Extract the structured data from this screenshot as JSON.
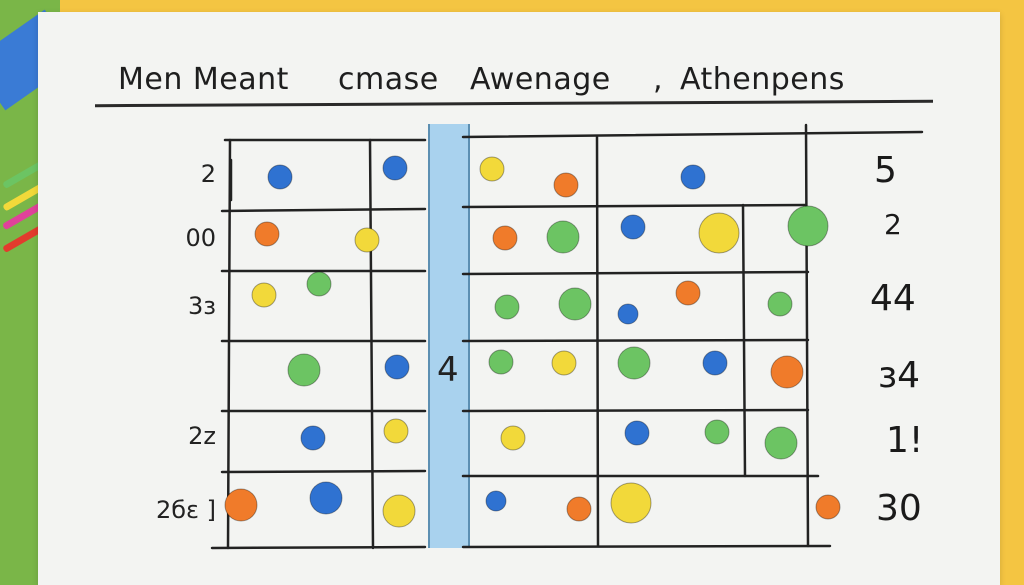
{
  "title": {
    "part1": "Men Meant",
    "part2": "cmase",
    "part3": "Awenage",
    "separator": ",",
    "part4": "Athenpens"
  },
  "left_labels": [
    "2",
    "00",
    "3з",
    "2z",
    "2бɛ ]"
  ],
  "right_labels": [
    "5",
    "2",
    "44",
    "з4",
    "1!",
    "30"
  ],
  "middle_label": "4",
  "colors": {
    "blue": "#2f72d1",
    "orange": "#f07b2a",
    "yellow": "#f2d93a",
    "green": "#6cc463",
    "strip": "#a9d2ee"
  },
  "dots": [
    {
      "color": "blue",
      "size": "md"
    },
    {
      "color": "blue",
      "size": "md"
    },
    {
      "color": "yellow",
      "size": "md"
    },
    {
      "color": "orange",
      "size": "md"
    },
    {
      "color": "blue",
      "size": "md"
    },
    {
      "color": "orange",
      "size": "md"
    },
    {
      "color": "yellow",
      "size": "md"
    },
    {
      "color": "orange",
      "size": "md"
    },
    {
      "color": "green",
      "size": "lg"
    },
    {
      "color": "blue",
      "size": "md"
    },
    {
      "color": "yellow",
      "size": "xl"
    },
    {
      "color": "green",
      "size": "xl"
    },
    {
      "color": "yellow",
      "size": "md"
    },
    {
      "color": "green",
      "size": "md"
    },
    {
      "color": "green",
      "size": "md"
    },
    {
      "color": "green",
      "size": "lg"
    },
    {
      "color": "blue",
      "size": "sm"
    },
    {
      "color": "orange",
      "size": "md"
    },
    {
      "color": "green",
      "size": "md"
    },
    {
      "color": "green",
      "size": "lg"
    },
    {
      "color": "blue",
      "size": "md"
    },
    {
      "color": "green",
      "size": "md"
    },
    {
      "color": "yellow",
      "size": "md"
    },
    {
      "color": "green",
      "size": "lg"
    },
    {
      "color": "blue",
      "size": "md"
    },
    {
      "color": "orange",
      "size": "lg"
    },
    {
      "color": "blue",
      "size": "md"
    },
    {
      "color": "yellow",
      "size": "md"
    },
    {
      "color": "yellow",
      "size": "md"
    },
    {
      "color": "blue",
      "size": "md"
    },
    {
      "color": "green",
      "size": "md"
    },
    {
      "color": "green",
      "size": "lg"
    },
    {
      "color": "orange",
      "size": "lg"
    },
    {
      "color": "blue",
      "size": "lg"
    },
    {
      "color": "yellow",
      "size": "lg"
    },
    {
      "color": "blue",
      "size": "sm"
    },
    {
      "color": "orange",
      "size": "md"
    },
    {
      "color": "yellow",
      "size": "xl"
    },
    {
      "color": "orange",
      "size": "md"
    }
  ]
}
